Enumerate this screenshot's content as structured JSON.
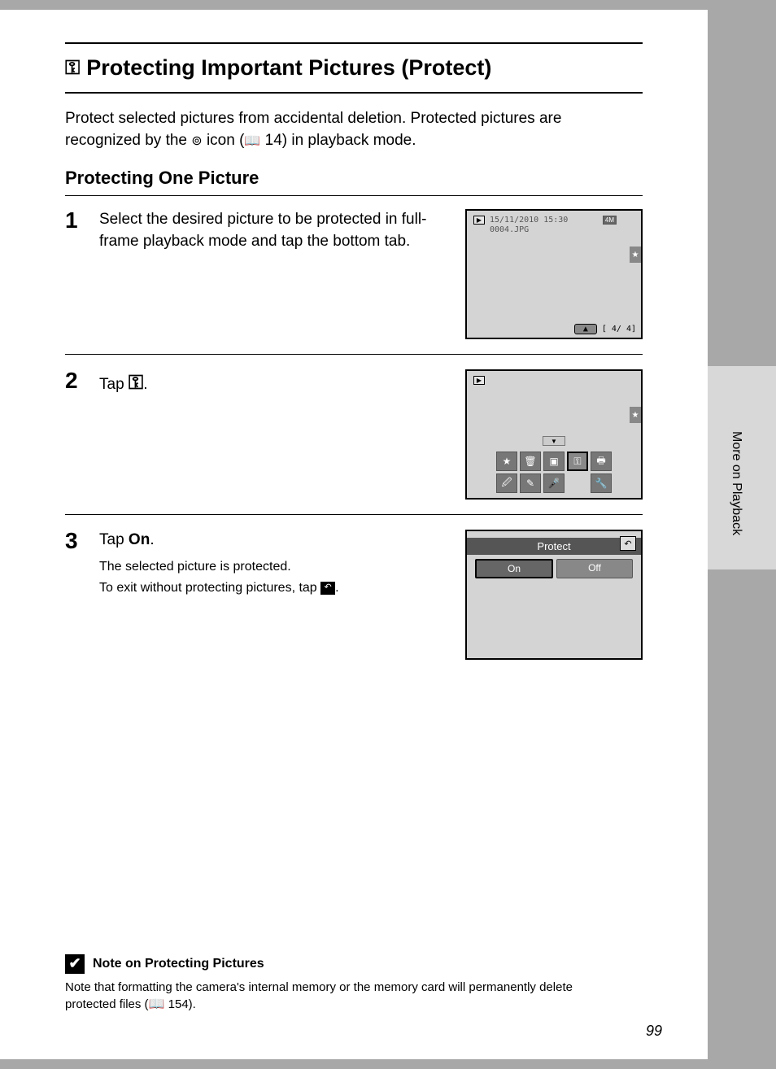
{
  "sideLabel": "More on Playback",
  "title": "Protecting Important Pictures (Protect)",
  "titleIcon": "⚿",
  "intro": {
    "line1": "Protect selected pictures from accidental deletion. Protected pictures are",
    "line2a": "recognized by the ",
    "cogIcon": "⊚",
    "line2b": " icon (",
    "bookIcon": "📖",
    "pageRef": " 14) in playback mode."
  },
  "subtitle": "Protecting One Picture",
  "steps": [
    {
      "num": "1",
      "main": "Select the desired picture to be protected in full-frame playback mode and tap the bottom tab.",
      "screen": {
        "date": "15/11/2010 15:30",
        "file": "0004.JPG",
        "mode": "4M",
        "counter": "[    4/    4]"
      }
    },
    {
      "num": "2",
      "mainPrefix": "Tap ",
      "mainIcon": "⚿",
      "mainSuffix": "."
    },
    {
      "num": "3",
      "mainPrefix": "Tap ",
      "mainBold": "On",
      "mainSuffix": ".",
      "sub1": "The selected picture is protected.",
      "sub2a": "To exit without protecting pictures, tap ",
      "sub2b": ".",
      "screen": {
        "title": "Protect",
        "on": "On",
        "off": "Off"
      }
    }
  ],
  "note": {
    "heading": "Note on Protecting Pictures",
    "body1": "Note that formatting the camera's internal memory or the memory card will permanently delete",
    "body2a": "protected files (",
    "bookIcon": "📖",
    "pageRef": " 154)."
  },
  "pageNum": "99"
}
